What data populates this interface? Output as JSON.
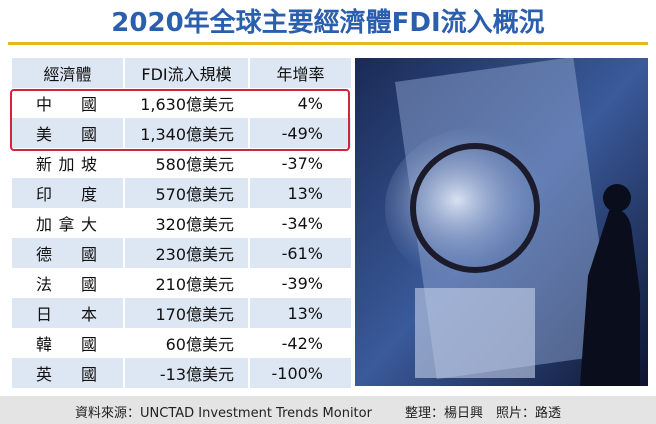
{
  "header": {
    "title": "2020年全球主要經濟體FDI流入概況"
  },
  "table": {
    "columns": [
      "經濟體",
      "FDI流入規模",
      "年增率"
    ],
    "rows": [
      [
        "中國",
        "1,630億美元",
        "4%"
      ],
      [
        "美國",
        "1,340億美元",
        "-49%"
      ],
      [
        "新加坡",
        "580億美元",
        "-37%"
      ],
      [
        "印度",
        "570億美元",
        "13%"
      ],
      [
        "加拿大",
        "320億美元",
        "-34%"
      ],
      [
        "德國",
        "230億美元",
        "-61%"
      ],
      [
        "法國",
        "210億美元",
        "-39%"
      ],
      [
        "日本",
        "170億美元",
        "13%"
      ],
      [
        "韓國",
        "60億美元",
        "-42%"
      ],
      [
        "英國",
        "-13億美元",
        "-100%"
      ]
    ]
  },
  "footer": {
    "source": "資料來源：UNCTAD Investment Trends Monitor",
    "credits": "整理：楊日興　照片：路透"
  }
}
